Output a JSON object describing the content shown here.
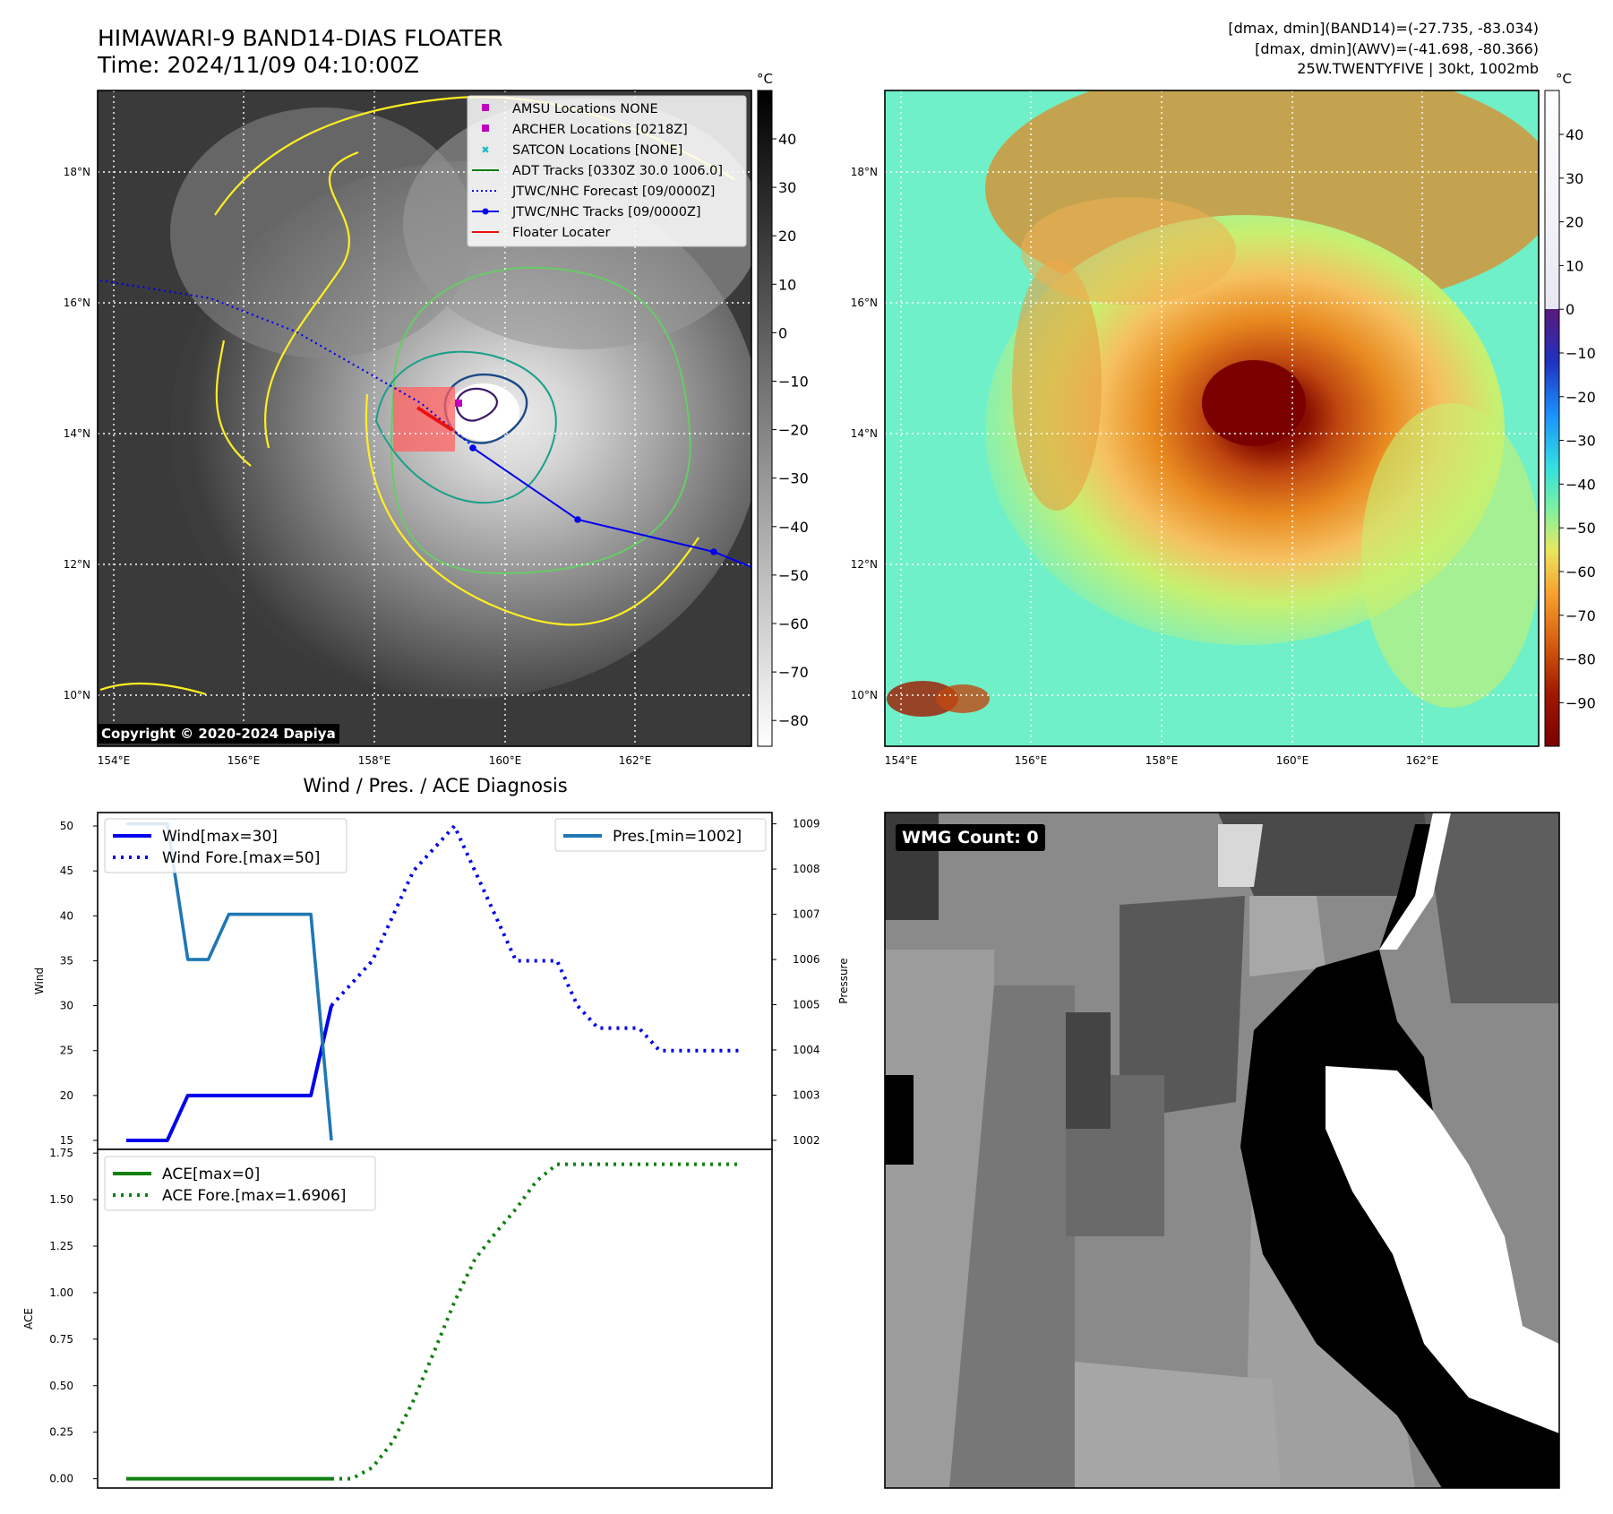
{
  "header": {
    "title_line1": "HIMAWARI-9 BAND14-DIAS FLOATER",
    "title_line2": "Time: 2024/11/09 04:10:00Z",
    "dmax_band14": "[dmax, dmin](BAND14)=(-27.735, -83.034)",
    "dmax_awv": "[dmax, dmin](AWV)=(-41.698, -80.366)",
    "storm_info": "25W.TWENTYFIVE | 30kt, 1002mb"
  },
  "map": {
    "lon_labels": [
      "154°E",
      "156°E",
      "158°E",
      "160°E",
      "162°E"
    ],
    "lat_labels": [
      "18°N",
      "16°N",
      "14°N",
      "12°N",
      "10°N"
    ],
    "copyright": "Copyright © 2020-2024 Dapiya",
    "legend": [
      {
        "label": "AMSU Locations NONE",
        "color": "#c000c0",
        "marker": "square"
      },
      {
        "label": "ARCHER Locations [0218Z]",
        "color": "#c000c0",
        "marker": "square"
      },
      {
        "label": "SATCON Locations [NONE]",
        "color": "#18b8c8",
        "marker": "x"
      },
      {
        "label": "ADT Tracks [0330Z 30.0 1006.0]",
        "color": "#108010",
        "marker": "line"
      },
      {
        "label": "JTWC/NHC Forecast [09/0000Z]",
        "color": "#0000ee",
        "marker": "dotted"
      },
      {
        "label": "JTWC/NHC Tracks [09/0000Z]",
        "color": "#0000ee",
        "marker": "line-dot"
      },
      {
        "label": "Floater Locater",
        "color": "#ee1010",
        "marker": "line"
      }
    ],
    "cbar_unit": "°C",
    "cbar_gray_ticks": [
      "40",
      "30",
      "20",
      "10",
      "0",
      "−10",
      "−20",
      "−30",
      "−40",
      "−50",
      "−60",
      "−70",
      "−80"
    ],
    "cbar_color_ticks": [
      "40",
      "30",
      "20",
      "10",
      "0",
      "−10",
      "−20",
      "−30",
      "−40",
      "−50",
      "−60",
      "−70",
      "−80",
      "−90"
    ]
  },
  "chart_data": [
    {
      "type": "line",
      "title": "Wind / Pres. / ACE Diagnosis",
      "ylabel": "Wind",
      "ylabel_right": "Pressure",
      "ylim": [
        14,
        51.5
      ],
      "ylim_right": [
        1001.8,
        1009.25
      ],
      "yticks": [
        15,
        20,
        25,
        30,
        35,
        40,
        45,
        50
      ],
      "yticks_right": [
        1002,
        1003,
        1004,
        1005,
        1006,
        1007,
        1008,
        1009
      ],
      "series": [
        {
          "name": "Wind[max=30]",
          "style": "solid",
          "color": "#0000ee",
          "x": [
            0,
            2,
            3,
            9,
            10
          ],
          "values": [
            15,
            15,
            20,
            20,
            30
          ]
        },
        {
          "name": "Wind Fore.[max=50]",
          "style": "dotted",
          "color": "#0000ee",
          "x": [
            10,
            11,
            12,
            13,
            14,
            15,
            16,
            17,
            18,
            19,
            20,
            21,
            22,
            23,
            24,
            25,
            26,
            27,
            28,
            29,
            30
          ],
          "values": [
            30,
            32.5,
            35,
            40,
            45,
            47.5,
            50,
            45,
            40,
            35,
            35,
            35,
            30,
            27.5,
            27.5,
            27.5,
            25,
            25,
            25,
            25,
            25
          ]
        },
        {
          "name": "Pres.[min=1002]",
          "style": "solid",
          "color": "#1f77b4",
          "axis": "right",
          "x": [
            0,
            2,
            3,
            4,
            5,
            9,
            10
          ],
          "values": [
            1009,
            1009,
            1006,
            1006,
            1007,
            1007,
            1002
          ]
        }
      ]
    },
    {
      "type": "line",
      "ylabel": "ACE",
      "ylim": [
        -0.05,
        1.77
      ],
      "yticks": [
        "0.00",
        "0.25",
        "0.50",
        "0.75",
        "1.00",
        "1.25",
        "1.50",
        "1.75"
      ],
      "series": [
        {
          "name": "ACE[max=0]",
          "style": "solid",
          "color": "#108010",
          "x": [
            0,
            10
          ],
          "values": [
            0,
            0
          ]
        },
        {
          "name": "ACE Fore.[max=1.6906]",
          "style": "dotted",
          "color": "#108010",
          "x": [
            10,
            11,
            12,
            13,
            14,
            15,
            16,
            17,
            18,
            19,
            20,
            21,
            22,
            23,
            24,
            25,
            26,
            27,
            28,
            29,
            30
          ],
          "values": [
            0,
            0,
            0.06,
            0.2,
            0.42,
            0.68,
            0.95,
            1.18,
            1.32,
            1.45,
            1.6,
            1.69,
            1.69,
            1.69,
            1.69,
            1.69,
            1.69,
            1.69,
            1.69,
            1.69,
            1.69
          ]
        }
      ]
    }
  ],
  "wmg": {
    "label": "WMG Count: 0"
  }
}
